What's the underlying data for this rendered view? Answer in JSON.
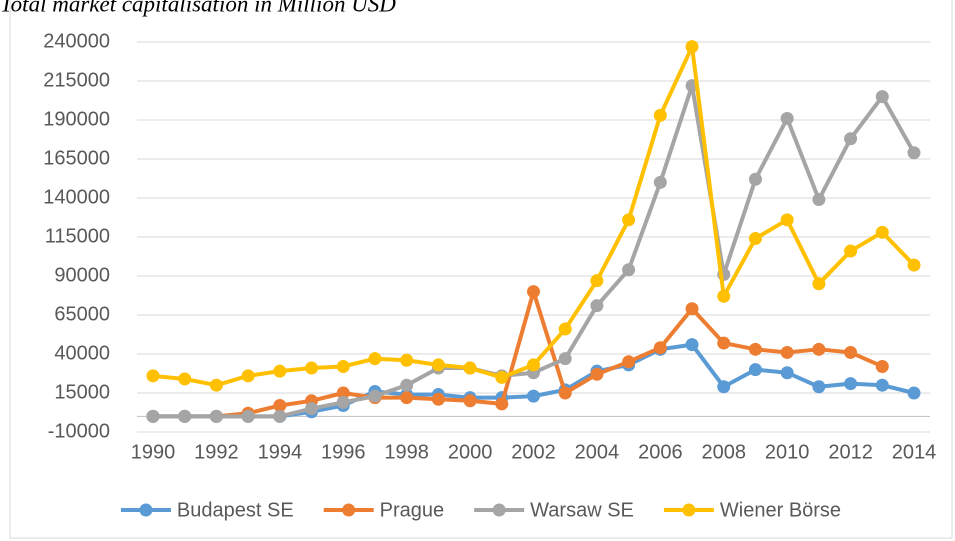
{
  "chart_data": {
    "type": "line",
    "title": "Total market capitalisation in Million USD",
    "x": [
      1990,
      1991,
      1992,
      1993,
      1994,
      1995,
      1996,
      1997,
      1998,
      1999,
      2000,
      2001,
      2002,
      2003,
      2004,
      2005,
      2006,
      2007,
      2008,
      2009,
      2010,
      2011,
      2012,
      2013,
      2014
    ],
    "series": [
      {
        "name": "Budapest SE",
        "color": "#5b9bd5",
        "values": [
          0,
          0,
          0,
          0,
          0,
          3000,
          7000,
          16000,
          14000,
          14000,
          12000,
          12000,
          13000,
          17000,
          29000,
          33000,
          43000,
          46000,
          19000,
          30000,
          28000,
          19000,
          21000,
          20000,
          15000
        ]
      },
      {
        "name": "Prague",
        "color": "#ed7d31",
        "values": [
          0,
          0,
          0,
          2000,
          7000,
          10000,
          15000,
          12000,
          12000,
          11000,
          10000,
          8000,
          80000,
          15000,
          27000,
          35000,
          44000,
          69000,
          47000,
          43000,
          41000,
          43000,
          41000,
          32000,
          null
        ]
      },
      {
        "name": "Warsaw SE",
        "color": "#a5a5a5",
        "values": [
          0,
          0,
          0,
          0,
          0,
          5000,
          9000,
          13000,
          20000,
          31000,
          31000,
          26000,
          28000,
          37000,
          71000,
          94000,
          150000,
          212000,
          91000,
          152000,
          191000,
          139000,
          178000,
          205000,
          169000
        ]
      },
      {
        "name": "Wiener Börse",
        "color": "#ffc000",
        "values": [
          26000,
          24000,
          20000,
          26000,
          29000,
          31000,
          32000,
          37000,
          36000,
          33000,
          31000,
          25000,
          33000,
          56000,
          87000,
          126000,
          193000,
          237000,
          77000,
          114000,
          126000,
          85000,
          106000,
          118000,
          97000
        ]
      }
    ],
    "xlim": [
      1990,
      2014
    ],
    "xticks": [
      1990,
      1992,
      1994,
      1996,
      1998,
      2000,
      2002,
      2004,
      2006,
      2008,
      2010,
      2012,
      2014
    ],
    "ylim": [
      -10000,
      240000
    ],
    "yticks": [
      -10000,
      15000,
      40000,
      65000,
      90000,
      115000,
      140000,
      165000,
      190000,
      215000,
      240000
    ],
    "grid": true,
    "legend": "bottom"
  }
}
